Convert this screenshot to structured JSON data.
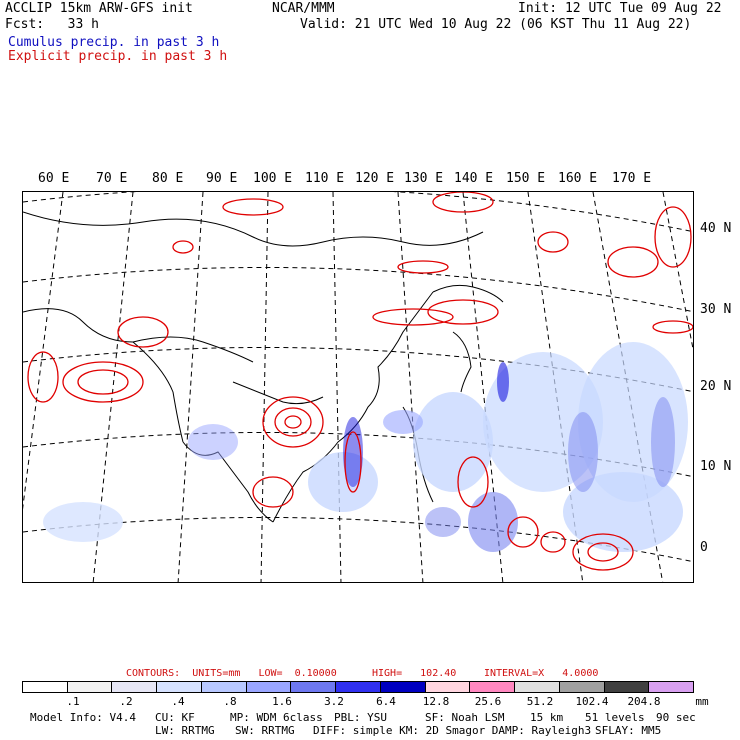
{
  "header": {
    "left1": "ACCLIP 15km ARW-GFS init",
    "left2": "Fcst:   33 h",
    "center": "NCAR/MMM",
    "init": "Init: 12 UTC Tue 09 Aug 22",
    "valid": "Valid: 21 UTC Wed 10 Aug 22 (06 KST Thu 11 Aug 22)",
    "cumulus": "Cumulus precip. in past 3 h",
    "explicit": "Explicit precip. in past 3 h"
  },
  "map": {
    "lon_labels": [
      "60 E",
      "70 E",
      "80 E",
      "90 E",
      "100 E",
      "110 E",
      "120 E",
      "130 E",
      "140 E",
      "150 E",
      "160 E",
      "170 E"
    ],
    "lat_labels": [
      "40 N",
      "30 N",
      "20 N",
      "10 N",
      "0"
    ],
    "colors": {
      "explicit": "#e00000",
      "cumulus_light": "#c8d8ff",
      "cumulus_mid": "#7a86f0",
      "cumulus_dark": "#1a1ae0"
    }
  },
  "legend": {
    "contours_label": "CONTOURS:  UNITS=mm   LOW=  0.10000",
    "high_label": "HIGH=   102.40",
    "interval_label": "INTERVAL=X   4.0000",
    "colors": [
      "#ffffff",
      "#f2f2f2",
      "#e6e6f5",
      "#d6e2ff",
      "#b8c8ff",
      "#9aa6ff",
      "#6e78f0",
      "#3030f0",
      "#0000c0",
      "#ffd6e0",
      "#ff88c0",
      "#e0e0e0",
      "#a0a0a0",
      "#404040",
      "#d8a0f0"
    ],
    "ticks": [
      ".1",
      ".2",
      ".4",
      ".8",
      "1.6",
      "3.2",
      "6.4",
      "12.8",
      "25.6",
      "51.2",
      "102.4",
      "204.8"
    ],
    "unit": "mm"
  },
  "footer": {
    "model_info": "Model Info: V4.4",
    "cu": "CU: KF",
    "mp": "MP: WDM 6class",
    "pbl": "PBL: YSU",
    "sf": "SF: Noah LSM",
    "res": "15 km",
    "levels": "51 levels",
    "dt": "90 sec",
    "lw": "LW: RRTMG",
    "sw": "SW: RRTMG",
    "diff": "DIFF: simple KM: 2D Smagor DAMP: Rayleigh3",
    "sflay": "SFLAY: MM5"
  }
}
